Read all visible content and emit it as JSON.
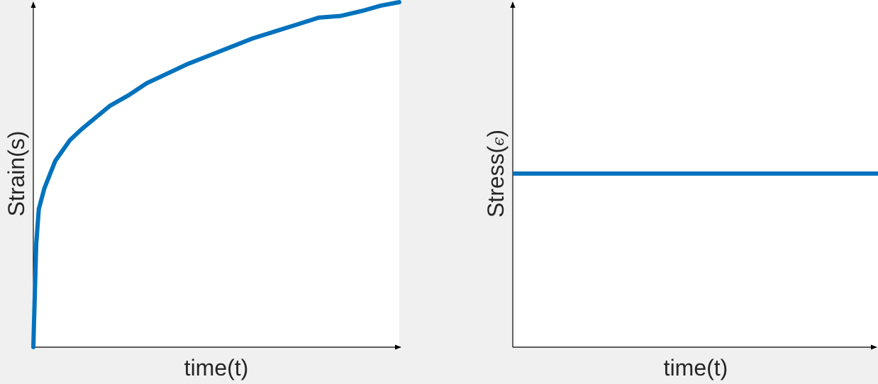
{
  "chart_data": [
    {
      "type": "line",
      "xlabel": "time(t)",
      "ylabel": "Strain(s)",
      "xlim": [
        0,
        1
      ],
      "ylim": [
        0,
        1
      ],
      "ticks": false,
      "grid": false,
      "line_color": "#0072bd",
      "series": [
        {
          "x": [
            0,
            0.008,
            0.015,
            0.03,
            0.045,
            0.06,
            0.08,
            0.1,
            0.13,
            0.17,
            0.21,
            0.26,
            0.31,
            0.36,
            0.42,
            0.48,
            0.54,
            0.6,
            0.66,
            0.72,
            0.78,
            0.84,
            0.9,
            0.95,
            1.0
          ],
          "y": [
            0,
            0.3,
            0.4,
            0.46,
            0.5,
            0.54,
            0.57,
            0.6,
            0.63,
            0.665,
            0.7,
            0.73,
            0.765,
            0.79,
            0.82,
            0.845,
            0.87,
            0.895,
            0.915,
            0.935,
            0.955,
            0.96,
            0.975,
            0.99,
            1.0
          ]
        }
      ]
    },
    {
      "type": "line",
      "xlabel": "time(t)",
      "ylabel": "Stress(",
      "ylabel_symbol": "ϵ",
      "ylabel_close": ")",
      "xlim": [
        0,
        1
      ],
      "ylim": [
        0,
        1
      ],
      "ticks": false,
      "grid": false,
      "line_color": "#0072bd",
      "series": [
        {
          "x": [
            0,
            1
          ],
          "y": [
            0.5,
            0.5
          ]
        }
      ]
    }
  ]
}
